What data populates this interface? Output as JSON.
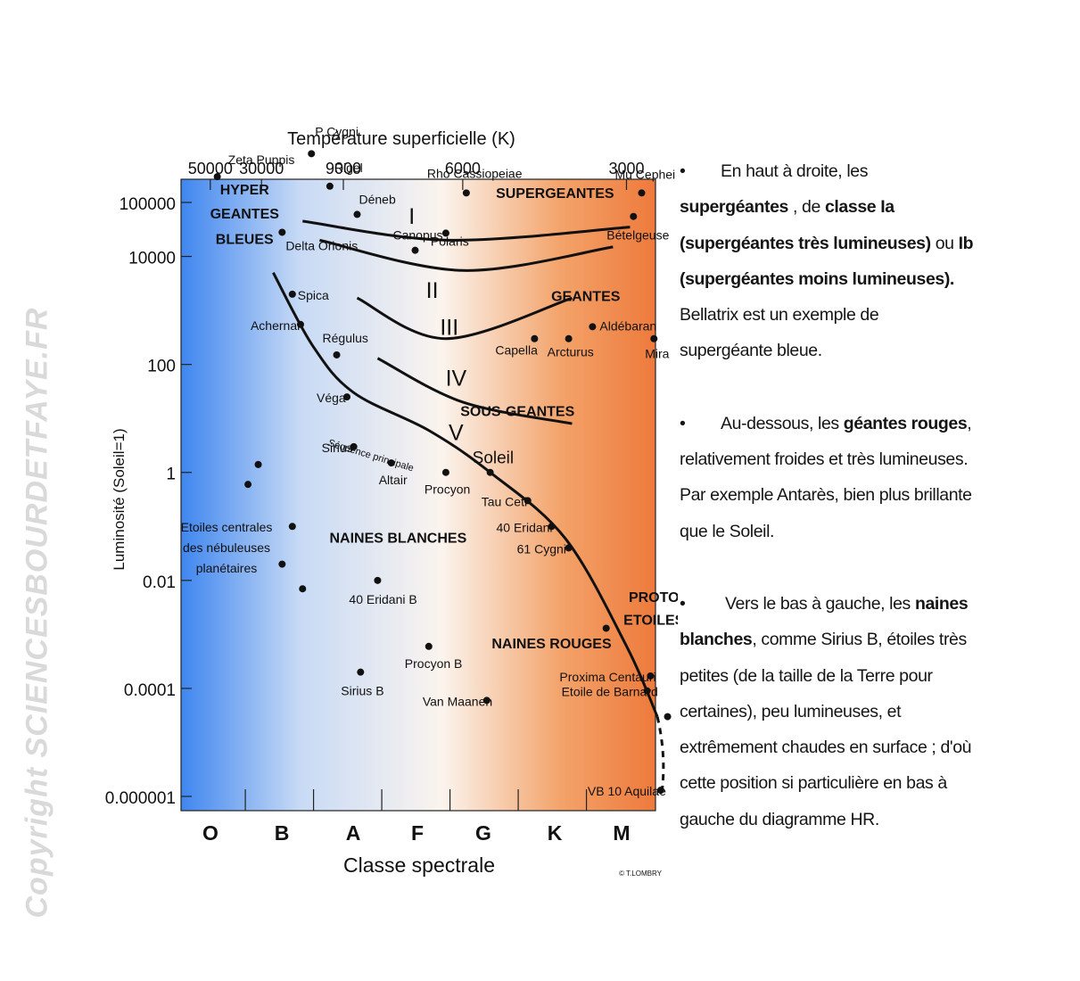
{
  "watermark": "Copyright SCIENCESBOURDETFAYE.FR",
  "credit": "© T.LOMBRY",
  "chart_data": {
    "type": "scatter",
    "title": "",
    "top_axis_title": "Température superficielle (K)",
    "top_ticks": [
      {
        "label": "50000",
        "class_pos": 0.05
      },
      {
        "label": "30000",
        "class_pos": 0.8
      },
      {
        "label": "9000",
        "class_pos": 2.0
      },
      {
        "label": "6000",
        "class_pos": 3.75
      },
      {
        "label": "3000",
        "class_pos": 6.15
      }
    ],
    "xlabel": "Classe spectrale",
    "spectral_classes": [
      "O",
      "B",
      "A",
      "F",
      "G",
      "K",
      "M"
    ],
    "ylabel": "Luminosité (Soleil=1)",
    "y_scale": "log",
    "ylim": [
      1e-06,
      1000000
    ],
    "y_ticks": [
      {
        "label": "100000",
        "value": 100000
      },
      {
        "label": "10000",
        "value": 10000
      },
      {
        "label": "100",
        "value": 100
      },
      {
        "label": "1",
        "value": 1
      },
      {
        "label": "0.01",
        "value": 0.01
      },
      {
        "label": "0.0001",
        "value": 0.0001
      },
      {
        "label": "0.000001",
        "value": 1e-06
      }
    ],
    "background_gradient": [
      "#3f86ef",
      "#c7daf5",
      "#fbf4ee",
      "#f3a36a",
      "#ee7a3c"
    ],
    "stars": [
      {
        "name": "Zeta Puppis",
        "class_pos": 0.1,
        "lum": 300000
      },
      {
        "name": "P Cygni",
        "class_pos": 1.48,
        "lum": 800000
      },
      {
        "name": "Rigel",
        "class_pos": 1.75,
        "lum": 200000
      },
      {
        "name": "Déneb",
        "class_pos": 2.15,
        "lum": 60000
      },
      {
        "name": "Rho Cassiopeiae",
        "class_pos": 3.75,
        "lum": 150000
      },
      {
        "name": "Mu Cephei",
        "class_pos": 6.32,
        "lum": 150000
      },
      {
        "name": "Polaris",
        "class_pos": 3.45,
        "lum": 27000
      },
      {
        "name": "Bételgeuse",
        "class_pos": 6.2,
        "lum": 55000
      },
      {
        "name": "Canopus",
        "class_pos": 3.0,
        "lum": 13000
      },
      {
        "name": "Delta Orionis",
        "class_pos": 1.05,
        "lum": 28000
      },
      {
        "name": "Spica",
        "class_pos": 1.2,
        "lum": 2000
      },
      {
        "name": "Achernar",
        "class_pos": 1.32,
        "lum": 550
      },
      {
        "name": "Régulus",
        "class_pos": 1.85,
        "lum": 150
      },
      {
        "name": "Aldébaran",
        "class_pos": 5.6,
        "lum": 500
      },
      {
        "name": "Capella",
        "class_pos": 4.75,
        "lum": 300
      },
      {
        "name": "Arcturus",
        "class_pos": 5.25,
        "lum": 300
      },
      {
        "name": "Mira",
        "class_pos": 6.5,
        "lum": 300
      },
      {
        "name": "Véga",
        "class_pos": 2.0,
        "lum": 25
      },
      {
        "name": "Sirius",
        "class_pos": 2.1,
        "lum": 3
      },
      {
        "name": "Altair",
        "class_pos": 2.65,
        "lum": 1.5
      },
      {
        "name": "Procyon",
        "class_pos": 3.45,
        "lum": 1.0
      },
      {
        "name": "Soleil",
        "class_pos": 4.1,
        "lum": 1
      },
      {
        "name": "Tau Ceti",
        "class_pos": 4.65,
        "lum": 0.3
      },
      {
        "name": "40 Eridani",
        "class_pos": 5.0,
        "lum": 0.1
      },
      {
        "name": "61 Cygni",
        "class_pos": 5.25,
        "lum": 0.04
      },
      {
        "name": "40 Eridani B",
        "class_pos": 2.45,
        "lum": 0.01
      },
      {
        "name": "Procyon B",
        "class_pos": 3.2,
        "lum": 0.0006
      },
      {
        "name": "Sirius B",
        "class_pos": 2.2,
        "lum": 0.0002
      },
      {
        "name": "Van Maanen",
        "class_pos": 4.05,
        "lum": 6e-05
      },
      {
        "name": "Proxima Centauri",
        "class_pos": 6.45,
        "lum": 0.00017
      },
      {
        "name": "Etoile de Barnard",
        "class_pos": 6.4,
        "lum": 9e-05
      },
      {
        "name": "VB 10 Aquilae",
        "class_pos": 6.6,
        "lum": 1.3e-06
      }
    ],
    "central_stars_label": [
      "Etoiles centrales",
      "des nébuleuses",
      "planétaires"
    ],
    "unlabeled_points": [
      {
        "class_pos": 0.7,
        "lum": 1.4
      },
      {
        "class_pos": 0.55,
        "lum": 0.6
      },
      {
        "class_pos": 1.2,
        "lum": 0.1
      },
      {
        "class_pos": 1.05,
        "lum": 0.02
      },
      {
        "class_pos": 1.35,
        "lum": 0.007
      },
      {
        "class_pos": 5.8,
        "lum": 0.0013
      },
      {
        "class_pos": 6.7,
        "lum": 3e-05
      }
    ],
    "regions": [
      {
        "label": "HYPER",
        "class_pos": 0.5,
        "lum": 140000
      },
      {
        "label": "GEANTES",
        "class_pos": 0.5,
        "lum": 50000
      },
      {
        "label": "BLEUES",
        "class_pos": 0.5,
        "lum": 17000
      },
      {
        "label": "SUPERGEANTES",
        "class_pos": 5.05,
        "lum": 120000
      },
      {
        "label": "GEANTES",
        "class_pos": 5.5,
        "lum": 1500
      },
      {
        "label": "SOUS-GEANTES",
        "class_pos": 4.5,
        "lum": 11
      },
      {
        "label": "NAINES BLANCHES",
        "class_pos": 2.75,
        "lum": 0.05
      },
      {
        "label": "NAINES ROUGES",
        "class_pos": 5.0,
        "lum": 0.00055
      },
      {
        "label": "PROTO",
        "class_pos": 6.5,
        "lum": 0.004
      },
      {
        "label": "ETOILES",
        "class_pos": 6.5,
        "lum": 0.0015
      }
    ],
    "luminosity_classes": [
      {
        "label": "I",
        "class_pos": 2.95,
        "lum": 40000
      },
      {
        "label": "II",
        "class_pos": 3.25,
        "lum": 1700
      },
      {
        "label": "III",
        "class_pos": 3.5,
        "lum": 350
      },
      {
        "label": "IV",
        "class_pos": 3.6,
        "lum": 40
      },
      {
        "label": "V",
        "class_pos": 3.6,
        "lum": 4
      }
    ],
    "main_sequence_label": "Séquence principale",
    "curves": [
      {
        "name": "I",
        "points": [
          [
            1.35,
            45000
          ],
          [
            3.5,
            20000
          ],
          [
            6.15,
            35000
          ]
        ]
      },
      {
        "name": "II",
        "points": [
          [
            1.6,
            20000
          ],
          [
            3.7,
            5500
          ],
          [
            5.9,
            15000
          ]
        ]
      },
      {
        "name": "III",
        "points": [
          [
            2.15,
            1700
          ],
          [
            3.45,
            300
          ],
          [
            5.3,
            1700
          ]
        ]
      },
      {
        "name": "IV",
        "points": [
          [
            2.45,
            130
          ],
          [
            3.7,
            20
          ],
          [
            5.3,
            8
          ]
        ]
      },
      {
        "name": "V",
        "points": [
          [
            0.92,
            5000
          ],
          [
            1.5,
            220
          ],
          [
            2.1,
            30
          ],
          [
            3.2,
            6
          ],
          [
            4.1,
            1
          ],
          [
            5.2,
            0.06
          ],
          [
            6.1,
            0.0006
          ],
          [
            6.55,
            3e-05
          ]
        ]
      }
    ]
  },
  "panel": {
    "paragraphs": [
      {
        "bullet": "•",
        "parts": [
          {
            "text": "En haut à droite, les ",
            "bold": false
          },
          {
            "text": "supergéantes",
            "bold": true
          },
          {
            "text": " , de ",
            "bold": false
          },
          {
            "text": "classe Ia (supergéantes très lumineuses)",
            "bold": true
          },
          {
            "text": " ou ",
            "bold": false
          },
          {
            "text": "Ib (supergéantes moins lumineuses).",
            "bold": true
          },
          {
            "text": " Bellatrix est un exemple de supergéante bleue.",
            "bold": false
          }
        ]
      },
      {
        "bullet": "•",
        "parts": [
          {
            "text": "Au-dessous, les ",
            "bold": false
          },
          {
            "text": "géantes rouges",
            "bold": true
          },
          {
            "text": ", relativement froides et très lumineuses. Par exemple Antarès, bien plus brillante que le Soleil.",
            "bold": false
          }
        ]
      },
      {
        "bullet": "•",
        "parts": [
          {
            "text": " Vers le bas à gauche, les ",
            "bold": false
          },
          {
            "text": "naines blanches",
            "bold": true
          },
          {
            "text": ", comme Sirius B, étoiles très petites (de la taille de la Terre pour certaines), peu lumineuses, et extrêmement chaudes en surface ; d'où cette position si particulière en bas à gauche du diagramme HR.",
            "bold": false
          }
        ]
      }
    ]
  }
}
